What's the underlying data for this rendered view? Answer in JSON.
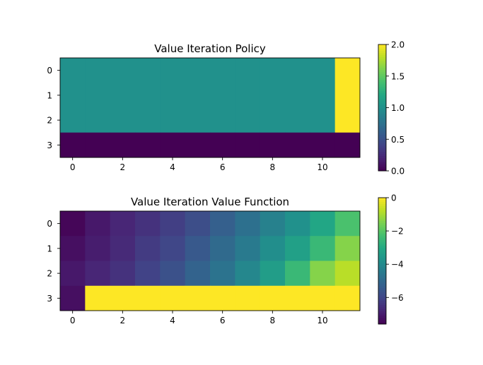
{
  "colors": {
    "viridis": [
      "#440154",
      "#482475",
      "#414487",
      "#355f8d",
      "#2a788e",
      "#21918c",
      "#22a884",
      "#44bf70",
      "#7ad151",
      "#bddf26",
      "#fde725"
    ]
  },
  "chart_data": [
    {
      "type": "heatmap",
      "title": "Value Iteration Policy",
      "xlabel": "",
      "ylabel": "",
      "x_ticks": [
        "0",
        "2",
        "4",
        "6",
        "8",
        "10"
      ],
      "y_ticks": [
        "0",
        "1",
        "2",
        "3"
      ],
      "vmin": 0,
      "vmax": 2,
      "colorbar_ticks": [
        "0.0",
        "0.5",
        "1.0",
        "1.5",
        "2.0"
      ],
      "values": [
        [
          1,
          1,
          1,
          1,
          1,
          1,
          1,
          1,
          1,
          1,
          1,
          2
        ],
        [
          1,
          1,
          1,
          1,
          1,
          1,
          1,
          1,
          1,
          1,
          1,
          2
        ],
        [
          1,
          1,
          1,
          1,
          1,
          1,
          1,
          1,
          1,
          1,
          1,
          2
        ],
        [
          0,
          0,
          0,
          0,
          0,
          0,
          0,
          0,
          0,
          0,
          0,
          0
        ]
      ]
    },
    {
      "type": "heatmap",
      "title": "Value Iteration Value Function",
      "xlabel": "",
      "ylabel": "",
      "x_ticks": [
        "0",
        "2",
        "4",
        "6",
        "8",
        "10"
      ],
      "y_ticks": [
        "0",
        "1",
        "2",
        "3"
      ],
      "vmin": -7.6,
      "vmax": 0,
      "colorbar_ticks": [
        "−6",
        "−4",
        "−2",
        "0"
      ],
      "values": [
        [
          -7.5,
          -7.1,
          -6.8,
          -6.5,
          -6.2,
          -5.8,
          -5.3,
          -4.8,
          -4.3,
          -3.8,
          -3.1,
          -2.2
        ],
        [
          -7.3,
          -7.0,
          -6.7,
          -6.3,
          -6.0,
          -5.5,
          -5.0,
          -4.5,
          -3.9,
          -3.3,
          -2.5,
          -1.4
        ],
        [
          -7.1,
          -6.8,
          -6.5,
          -6.1,
          -5.7,
          -5.2,
          -4.7,
          -4.1,
          -3.4,
          -2.5,
          -1.4,
          -0.8
        ],
        [
          -7.3,
          0,
          0,
          0,
          0,
          0,
          0,
          0,
          0,
          0,
          0,
          0
        ]
      ]
    }
  ]
}
